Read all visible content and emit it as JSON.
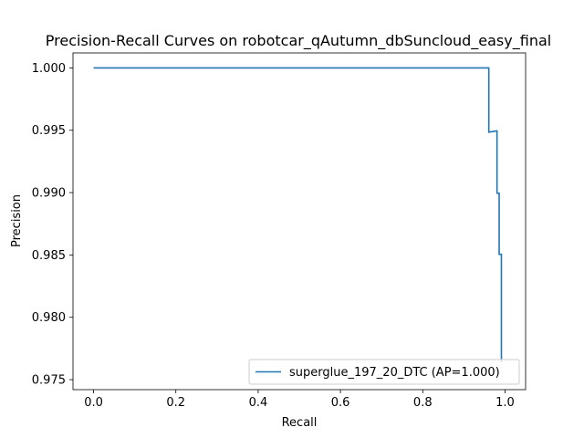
{
  "chart_data": {
    "type": "line",
    "title": "Precision-Recall Curves on robotcar_qAutumn_dbSuncloud_easy_final",
    "xlabel": "Recall",
    "ylabel": "Precision",
    "xlim": [
      -0.05,
      1.05
    ],
    "ylim": [
      0.9742,
      1.0012
    ],
    "xticks": [
      0.0,
      0.2,
      0.4,
      0.6,
      0.8,
      1.0
    ],
    "xtick_labels": [
      "0.0",
      "0.2",
      "0.4",
      "0.6",
      "0.8",
      "1.0"
    ],
    "yticks": [
      0.975,
      0.98,
      0.985,
      0.99,
      0.995,
      1.0
    ],
    "ytick_labels": [
      "0.975",
      "0.980",
      "0.985",
      "0.990",
      "0.995",
      "1.000"
    ],
    "grid": false,
    "legend_position": "lower-right",
    "series": [
      {
        "name": "superglue_197_20_DTC (AP=1.000)",
        "color": "#1f77b4",
        "points": [
          [
            0.0,
            1.0
          ],
          [
            0.9606,
            1.0
          ],
          [
            0.9606,
            0.99485
          ],
          [
            0.9805,
            0.99495
          ],
          [
            0.9805,
            0.98995
          ],
          [
            0.9857,
            0.98995
          ],
          [
            0.9857,
            0.98505
          ],
          [
            0.9912,
            0.98505
          ],
          [
            0.9912,
            0.9764
          ]
        ]
      }
    ]
  }
}
